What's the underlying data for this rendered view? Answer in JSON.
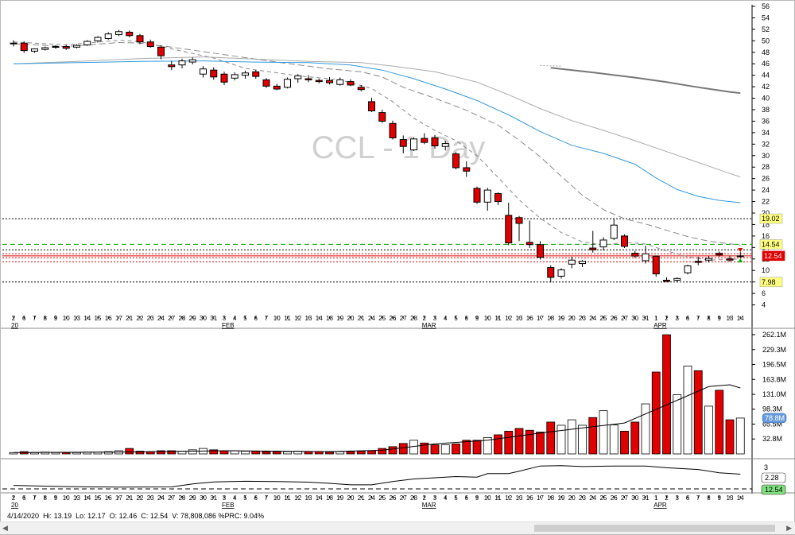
{
  "chart_data": {
    "type": "candlestick",
    "symbol_watermark": "CCL - 1 Day",
    "x_tick_labels": [
      "2",
      "6",
      "7",
      "8",
      "9",
      "10",
      "13",
      "14",
      "15",
      "16",
      "17",
      "21",
      "22",
      "23",
      "24",
      "27",
      "28",
      "29",
      "30",
      "31",
      "3",
      "4",
      "5",
      "6",
      "7",
      "10",
      "11",
      "12",
      "13",
      "14",
      "18",
      "19",
      "20",
      "21",
      "24",
      "25",
      "26",
      "27",
      "28",
      "2",
      "3",
      "4",
      "5",
      "6",
      "9",
      "10",
      "11",
      "12",
      "13",
      "16",
      "17",
      "18",
      "19",
      "20",
      "23",
      "24",
      "25",
      "26",
      "27",
      "30",
      "31",
      "1",
      "2",
      "3",
      "6",
      "7",
      "8",
      "9",
      "13",
      "14"
    ],
    "month_labels": [
      {
        "label": "20",
        "at": 0
      },
      {
        "label": "FEB",
        "at": 20
      },
      {
        "label": "MAR",
        "at": 39
      },
      {
        "label": "APR",
        "at": 61
      }
    ],
    "price_axis": {
      "min": 2,
      "max": 56,
      "ticks": [
        4,
        6,
        8,
        10,
        12,
        14,
        16,
        18,
        20,
        22,
        24,
        26,
        28,
        30,
        32,
        34,
        36,
        38,
        40,
        42,
        44,
        46,
        48,
        50,
        52,
        54,
        56
      ]
    },
    "price_tags": [
      {
        "label": "19.02",
        "value": 19.02,
        "style": "dotted",
        "bg": "#ffff80"
      },
      {
        "label": "14.54",
        "value": 14.54,
        "style": "dashed-green",
        "bg": "#ffff80"
      },
      {
        "label": "12.54",
        "value": 12.54,
        "style": "last",
        "bg": "#e00000"
      },
      {
        "label": "7.98",
        "value": 7.98,
        "style": "dotted",
        "bg": "#ffff80"
      }
    ],
    "candles": [
      [
        49.5,
        50.1,
        49.0,
        49.6
      ],
      [
        49.6,
        49.9,
        47.9,
        48.3
      ],
      [
        48.2,
        48.7,
        47.9,
        48.6
      ],
      [
        48.5,
        49.0,
        48.3,
        48.8
      ],
      [
        48.9,
        49.2,
        48.6,
        49.0
      ],
      [
        49.0,
        49.3,
        48.4,
        48.7
      ],
      [
        48.9,
        49.4,
        48.7,
        49.2
      ],
      [
        49.3,
        50.1,
        49.1,
        49.9
      ],
      [
        50.0,
        50.8,
        49.7,
        50.6
      ],
      [
        50.4,
        51.5,
        50.2,
        51.2
      ],
      [
        51.1,
        51.9,
        50.8,
        51.6
      ],
      [
        51.5,
        51.8,
        50.6,
        50.9
      ],
      [
        50.9,
        51.2,
        49.4,
        49.8
      ],
      [
        49.8,
        50.2,
        48.8,
        49.0
      ],
      [
        48.9,
        49.2,
        46.8,
        47.4
      ],
      [
        45.8,
        46.5,
        44.9,
        45.5
      ],
      [
        45.8,
        46.9,
        45.2,
        46.5
      ],
      [
        46.3,
        47.1,
        45.9,
        46.7
      ],
      [
        44.2,
        45.6,
        43.6,
        45.1
      ],
      [
        44.9,
        45.4,
        43.2,
        43.7
      ],
      [
        44.2,
        44.6,
        42.3,
        42.8
      ],
      [
        43.5,
        44.5,
        43.1,
        44.1
      ],
      [
        44.0,
        44.8,
        43.4,
        44.4
      ],
      [
        44.6,
        44.9,
        43.4,
        43.8
      ],
      [
        43.2,
        43.5,
        41.8,
        42.1
      ],
      [
        42.1,
        42.5,
        41.4,
        41.6
      ],
      [
        41.9,
        43.6,
        41.7,
        43.3
      ],
      [
        43.4,
        44.2,
        42.7,
        43.9
      ],
      [
        43.4,
        44.0,
        42.8,
        43.2
      ],
      [
        43.1,
        43.4,
        42.6,
        42.9
      ],
      [
        43.1,
        43.7,
        42.4,
        42.7
      ],
      [
        42.4,
        43.6,
        42.2,
        43.2
      ],
      [
        42.9,
        43.3,
        42.1,
        42.3
      ],
      [
        41.9,
        42.3,
        41.2,
        41.5
      ],
      [
        39.4,
        40.1,
        37.6,
        37.8
      ],
      [
        37.5,
        38.0,
        35.7,
        36.0
      ],
      [
        35.6,
        36.1,
        32.8,
        33.1
      ],
      [
        32.8,
        33.5,
        30.4,
        31.6
      ],
      [
        31.0,
        33.2,
        30.8,
        32.9
      ],
      [
        33.0,
        33.9,
        32.0,
        32.3
      ],
      [
        33.1,
        33.6,
        31.2,
        31.7
      ],
      [
        31.6,
        32.6,
        30.9,
        32.1
      ],
      [
        30.3,
        30.6,
        27.6,
        27.9
      ],
      [
        27.9,
        29.0,
        26.3,
        27.3
      ],
      [
        24.3,
        24.6,
        21.6,
        21.9
      ],
      [
        21.9,
        24.4,
        20.4,
        24.0
      ],
      [
        23.4,
        23.6,
        21.4,
        22.0
      ],
      [
        19.6,
        21.8,
        14.4,
        14.8
      ],
      [
        19.2,
        19.5,
        15.1,
        18.2
      ],
      [
        14.9,
        18.7,
        13.9,
        14.5
      ],
      [
        14.5,
        15.1,
        11.9,
        12.3
      ],
      [
        10.5,
        10.9,
        7.9,
        8.8
      ],
      [
        9.0,
        10.4,
        8.6,
        10.1
      ],
      [
        11.1,
        12.4,
        10.4,
        11.8
      ],
      [
        11.2,
        11.8,
        10.6,
        11.6
      ],
      [
        13.9,
        16.9,
        13.1,
        13.6
      ],
      [
        14.1,
        15.8,
        13.5,
        15.3
      ],
      [
        15.6,
        19.0,
        15.3,
        17.9
      ],
      [
        16.0,
        16.3,
        13.9,
        14.2
      ],
      [
        13.0,
        13.4,
        12.2,
        12.5
      ],
      [
        11.7,
        14.3,
        11.2,
        12.9
      ],
      [
        12.5,
        12.6,
        8.9,
        9.4
      ],
      [
        8.3,
        8.8,
        7.98,
        8.1
      ],
      [
        8.3,
        8.8,
        8.0,
        8.6
      ],
      [
        9.6,
        11.0,
        9.3,
        10.8
      ],
      [
        11.6,
        12.4,
        10.9,
        11.4
      ],
      [
        11.8,
        12.5,
        11.4,
        12.1
      ],
      [
        13.0,
        13.3,
        12.4,
        12.7
      ],
      [
        12.0,
        12.6,
        11.5,
        11.8
      ],
      [
        12.46,
        13.19,
        12.17,
        12.54
      ]
    ],
    "moving_averages": [
      {
        "name": "",
        "color": "#888888",
        "width": 1,
        "dash": "5,4",
        "points": [
          [
            0,
            49.8
          ],
          [
            5,
            49.3
          ],
          [
            10,
            50.1
          ],
          [
            12,
            49.9
          ],
          [
            15,
            48.6
          ],
          [
            19,
            47.0
          ],
          [
            22,
            45.2
          ],
          [
            27,
            43.9
          ],
          [
            31,
            43.2
          ],
          [
            34,
            41.7
          ],
          [
            36,
            39.4
          ],
          [
            38,
            36.5
          ],
          [
            40,
            34.4
          ],
          [
            42,
            32.6
          ],
          [
            44,
            30.0
          ],
          [
            46,
            26.2
          ],
          [
            48,
            22.3
          ],
          [
            50,
            19.1
          ],
          [
            52,
            16.6
          ],
          [
            54,
            15.0
          ],
          [
            56,
            14.4
          ],
          [
            58,
            14.9
          ],
          [
            60,
            14.6
          ],
          [
            62,
            13.4
          ],
          [
            64,
            12.4
          ],
          [
            66,
            11.8
          ],
          [
            69,
            12.0
          ]
        ]
      },
      {
        "name": "",
        "color": "#888888",
        "width": 1,
        "dash": "8,4",
        "points": [
          [
            0,
            49.5
          ],
          [
            5,
            49.0
          ],
          [
            10,
            49.7
          ],
          [
            12,
            49.6
          ],
          [
            15,
            48.9
          ],
          [
            20,
            47.6
          ],
          [
            25,
            46.3
          ],
          [
            30,
            45.1
          ],
          [
            33,
            44.6
          ],
          [
            35,
            43.7
          ],
          [
            37,
            41.9
          ],
          [
            40,
            40.0
          ],
          [
            43,
            37.9
          ],
          [
            46,
            35.3
          ],
          [
            48,
            32.7
          ],
          [
            50,
            29.8
          ],
          [
            52,
            26.4
          ],
          [
            54,
            23.1
          ],
          [
            56,
            20.6
          ],
          [
            58,
            19.0
          ],
          [
            60,
            18.1
          ],
          [
            62,
            17.0
          ],
          [
            64,
            15.9
          ],
          [
            66,
            15.1
          ],
          [
            69,
            14.4
          ]
        ]
      },
      {
        "name": "",
        "color": "#aaaaaa",
        "width": 1,
        "dash": "2,2",
        "points": [
          [
            50,
            45.7
          ],
          [
            52,
            45.6
          ]
        ]
      },
      {
        "name": "",
        "color": "#aaaaaa",
        "width": 1,
        "dash": "",
        "points": [
          [
            0,
            46.0
          ],
          [
            6,
            46.4
          ],
          [
            12,
            46.9
          ],
          [
            18,
            47.2
          ],
          [
            23,
            46.8
          ],
          [
            28,
            46.4
          ],
          [
            33,
            46.2
          ],
          [
            36,
            45.6
          ],
          [
            40,
            44.6
          ],
          [
            44,
            42.8
          ],
          [
            47,
            40.6
          ],
          [
            50,
            38.2
          ],
          [
            53,
            36.1
          ],
          [
            56,
            34.4
          ],
          [
            59,
            32.6
          ],
          [
            62,
            30.7
          ],
          [
            65,
            28.8
          ],
          [
            68,
            26.9
          ],
          [
            69,
            26.3
          ]
        ]
      },
      {
        "name": "",
        "color": "#3399dd",
        "width": 1,
        "dash": "",
        "points": [
          [
            0,
            46.0
          ],
          [
            6,
            46.2
          ],
          [
            12,
            46.4
          ],
          [
            18,
            46.5
          ],
          [
            23,
            46.3
          ],
          [
            28,
            46.2
          ],
          [
            32,
            45.8
          ],
          [
            35,
            44.9
          ],
          [
            38,
            43.4
          ],
          [
            41,
            41.6
          ],
          [
            44,
            39.6
          ],
          [
            47,
            37.1
          ],
          [
            50,
            34.2
          ],
          [
            53,
            31.8
          ],
          [
            56,
            30.4
          ],
          [
            59,
            28.5
          ],
          [
            61,
            26.1
          ],
          [
            63,
            24.1
          ],
          [
            65,
            22.9
          ],
          [
            67,
            22.2
          ],
          [
            69,
            21.8
          ]
        ]
      },
      {
        "name": "",
        "color": "#777777",
        "width": 2,
        "dash": "",
        "points": [
          [
            51,
            45.3
          ],
          [
            55,
            44.5
          ],
          [
            59,
            43.6
          ],
          [
            62,
            42.8
          ],
          [
            65,
            41.9
          ],
          [
            68,
            41.1
          ],
          [
            69,
            40.9
          ]
        ]
      }
    ],
    "volume_axis": {
      "max": 262.1,
      "ticks": [
        {
          "label": "262.1M",
          "value": 262.1
        },
        {
          "label": "229.3M",
          "value": 229.3
        },
        {
          "label": "196.5M",
          "value": 196.5
        },
        {
          "label": "163.8M",
          "value": 163.8
        },
        {
          "label": "131.0M",
          "value": 131.0
        },
        {
          "label": "98.3M",
          "value": 98.3
        },
        {
          "label": "65.5M",
          "value": 65.5
        },
        {
          "label": "32.8M",
          "value": 32.8
        }
      ]
    },
    "volume_tag": {
      "label": "78.8M",
      "value": 78.8
    },
    "volumes": [
      3,
      5,
      3,
      4,
      3,
      3,
      3,
      4,
      4,
      5,
      7,
      12,
      6,
      5,
      7,
      7,
      6,
      9,
      12,
      9,
      7,
      7,
      6,
      6,
      5,
      5,
      5,
      6,
      5,
      5,
      4,
      5,
      5,
      6,
      7,
      12,
      16,
      23,
      30,
      24,
      20,
      20,
      22,
      30,
      30,
      36,
      42,
      50,
      56,
      52,
      48,
      70,
      63,
      75,
      63,
      80,
      95,
      64,
      50,
      70,
      110,
      180,
      262,
      130,
      193,
      183,
      105,
      140,
      75,
      78.8
    ],
    "volume_ma": [
      [
        0,
        3
      ],
      [
        10,
        4
      ],
      [
        20,
        7
      ],
      [
        30,
        5
      ],
      [
        35,
        8
      ],
      [
        40,
        22
      ],
      [
        45,
        30
      ],
      [
        50,
        46
      ],
      [
        55,
        60
      ],
      [
        58,
        68
      ],
      [
        61,
        98
      ],
      [
        63,
        118
      ],
      [
        65,
        138
      ],
      [
        66,
        148
      ],
      [
        68,
        152
      ],
      [
        69,
        145
      ]
    ],
    "lower_indicator": {
      "tags": [
        {
          "label": "2.28",
          "bg": "#ffffff"
        },
        {
          "label": "12.54",
          "bg": "#7fe07f"
        }
      ],
      "axis_label": "3",
      "line": [
        [
          0,
          0.2
        ],
        [
          5,
          0.16
        ],
        [
          10,
          0.14
        ],
        [
          15,
          0.15
        ],
        [
          17,
          0.25
        ],
        [
          19,
          0.32
        ],
        [
          22,
          0.34
        ],
        [
          25,
          0.33
        ],
        [
          28,
          0.31
        ],
        [
          30,
          0.27
        ],
        [
          32,
          0.22
        ],
        [
          34,
          0.22
        ],
        [
          36,
          0.33
        ],
        [
          38,
          0.42
        ],
        [
          40,
          0.46
        ],
        [
          42,
          0.5
        ],
        [
          44,
          0.48
        ],
        [
          45,
          0.6
        ],
        [
          47,
          0.6
        ],
        [
          48,
          0.68
        ],
        [
          50,
          0.86
        ],
        [
          52,
          0.87
        ],
        [
          54,
          0.84
        ],
        [
          57,
          0.86
        ],
        [
          60,
          0.86
        ],
        [
          62,
          0.8
        ],
        [
          65,
          0.74
        ],
        [
          67,
          0.63
        ],
        [
          69,
          0.58
        ]
      ]
    }
  },
  "status": {
    "date": "4/14/2020",
    "hi": "Hi: 13.19",
    "lo": "Lo: 12.17",
    "open": "O: 12.46",
    "close": "C: 12.54",
    "volume": "V: 78,808,086",
    "prc": "%PRC: 9.04%"
  }
}
